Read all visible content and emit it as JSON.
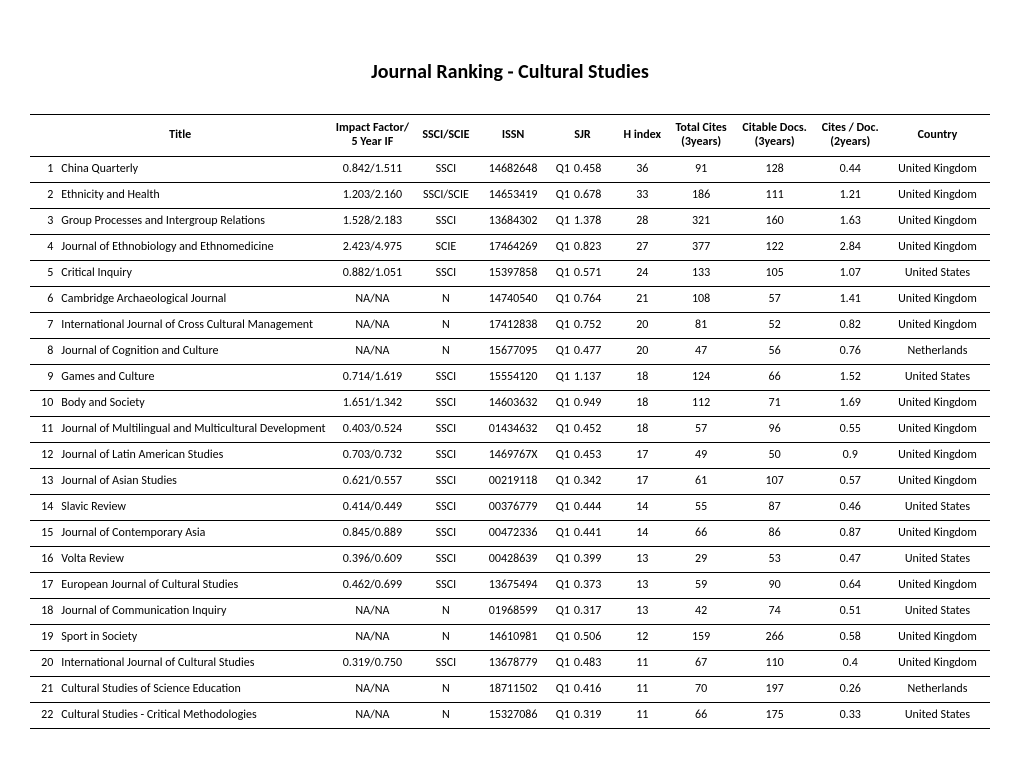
{
  "page_title": "Journal Ranking - Cultural Studies",
  "columns": {
    "title": "Title",
    "impact": "Impact Factor/\n5 Year IF",
    "ssci": "SSCI/SCIE",
    "issn": "ISSN",
    "sjr": "SJR",
    "hindex": "H index",
    "tcites": "Total Cites\n(3years)",
    "cdocs": "Citable Docs.\n(3years)",
    "cpd": "Cites / Doc.\n(2years)",
    "country": "Country"
  },
  "rows": [
    {
      "rank": "1",
      "title": "China Quarterly",
      "impact": "0.842/1.511",
      "ssci": "SSCI",
      "issn": "14682648",
      "q": "Q1",
      "sjr": "0.458",
      "h": "36",
      "tc": "91",
      "cd": "128",
      "cpd": "0.44",
      "country": "United Kingdom"
    },
    {
      "rank": "2",
      "title": "Ethnicity and Health",
      "impact": "1.203/2.160",
      "ssci": "SSCI/SCIE",
      "issn": "14653419",
      "q": "Q1",
      "sjr": "0.678",
      "h": "33",
      "tc": "186",
      "cd": "111",
      "cpd": "1.21",
      "country": "United Kingdom"
    },
    {
      "rank": "3",
      "title": "Group Processes and Intergroup Relations",
      "impact": "1.528/2.183",
      "ssci": "SSCI",
      "issn": "13684302",
      "q": "Q1",
      "sjr": "1.378",
      "h": "28",
      "tc": "321",
      "cd": "160",
      "cpd": "1.63",
      "country": "United Kingdom"
    },
    {
      "rank": "4",
      "title": "Journal of Ethnobiology and Ethnomedicine",
      "impact": "2.423/4.975",
      "ssci": "SCIE",
      "issn": "17464269",
      "q": "Q1",
      "sjr": "0.823",
      "h": "27",
      "tc": "377",
      "cd": "122",
      "cpd": "2.84",
      "country": "United Kingdom"
    },
    {
      "rank": "5",
      "title": "Critical Inquiry",
      "impact": "0.882/1.051",
      "ssci": "SSCI",
      "issn": "15397858",
      "q": "Q1",
      "sjr": "0.571",
      "h": "24",
      "tc": "133",
      "cd": "105",
      "cpd": "1.07",
      "country": "United States"
    },
    {
      "rank": "6",
      "title": "Cambridge Archaeological Journal",
      "impact": "NA/NA",
      "ssci": "N",
      "issn": "14740540",
      "q": "Q1",
      "sjr": "0.764",
      "h": "21",
      "tc": "108",
      "cd": "57",
      "cpd": "1.41",
      "country": "United Kingdom"
    },
    {
      "rank": "7",
      "title": "International Journal of Cross Cultural Management",
      "impact": "NA/NA",
      "ssci": "N",
      "issn": "17412838",
      "q": "Q1",
      "sjr": "0.752",
      "h": "20",
      "tc": "81",
      "cd": "52",
      "cpd": "0.82",
      "country": "United Kingdom"
    },
    {
      "rank": "8",
      "title": "Journal of Cognition and Culture",
      "impact": "NA/NA",
      "ssci": "N",
      "issn": "15677095",
      "q": "Q1",
      "sjr": "0.477",
      "h": "20",
      "tc": "47",
      "cd": "56",
      "cpd": "0.76",
      "country": "Netherlands"
    },
    {
      "rank": "9",
      "title": "Games and Culture",
      "impact": "0.714/1.619",
      "ssci": "SSCI",
      "issn": "15554120",
      "q": "Q1",
      "sjr": "1.137",
      "h": "18",
      "tc": "124",
      "cd": "66",
      "cpd": "1.52",
      "country": "United States"
    },
    {
      "rank": "10",
      "title": "Body and Society",
      "impact": "1.651/1.342",
      "ssci": "SSCI",
      "issn": "14603632",
      "q": "Q1",
      "sjr": "0.949",
      "h": "18",
      "tc": "112",
      "cd": "71",
      "cpd": "1.69",
      "country": "United Kingdom"
    },
    {
      "rank": "11",
      "title": "Journal of Multilingual and Multicultural Development",
      "impact": "0.403/0.524",
      "ssci": "SSCI",
      "issn": "01434632",
      "q": "Q1",
      "sjr": "0.452",
      "h": "18",
      "tc": "57",
      "cd": "96",
      "cpd": "0.55",
      "country": "United Kingdom"
    },
    {
      "rank": "12",
      "title": "Journal of Latin American Studies",
      "impact": "0.703/0.732",
      "ssci": "SSCI",
      "issn": "1469767X",
      "q": "Q1",
      "sjr": "0.453",
      "h": "17",
      "tc": "49",
      "cd": "50",
      "cpd": "0.9",
      "country": "United Kingdom"
    },
    {
      "rank": "13",
      "title": "Journal of Asian Studies",
      "impact": "0.621/0.557",
      "ssci": "SSCI",
      "issn": "00219118",
      "q": "Q1",
      "sjr": "0.342",
      "h": "17",
      "tc": "61",
      "cd": "107",
      "cpd": "0.57",
      "country": "United Kingdom"
    },
    {
      "rank": "14",
      "title": "Slavic Review",
      "impact": "0.414/0.449",
      "ssci": "SSCI",
      "issn": "00376779",
      "q": "Q1",
      "sjr": "0.444",
      "h": "14",
      "tc": "55",
      "cd": "87",
      "cpd": "0.46",
      "country": "United States"
    },
    {
      "rank": "15",
      "title": "Journal of Contemporary Asia",
      "impact": "0.845/0.889",
      "ssci": "SSCI",
      "issn": "00472336",
      "q": "Q1",
      "sjr": "0.441",
      "h": "14",
      "tc": "66",
      "cd": "86",
      "cpd": "0.87",
      "country": "United Kingdom"
    },
    {
      "rank": "16",
      "title": "Volta Review",
      "impact": "0.396/0.609",
      "ssci": "SSCI",
      "issn": "00428639",
      "q": "Q1",
      "sjr": "0.399",
      "h": "13",
      "tc": "29",
      "cd": "53",
      "cpd": "0.47",
      "country": "United States"
    },
    {
      "rank": "17",
      "title": "European Journal of Cultural Studies",
      "impact": "0.462/0.699",
      "ssci": "SSCI",
      "issn": "13675494",
      "q": "Q1",
      "sjr": "0.373",
      "h": "13",
      "tc": "59",
      "cd": "90",
      "cpd": "0.64",
      "country": "United Kingdom"
    },
    {
      "rank": "18",
      "title": "Journal of Communication Inquiry",
      "impact": "NA/NA",
      "ssci": "N",
      "issn": "01968599",
      "q": "Q1",
      "sjr": "0.317",
      "h": "13",
      "tc": "42",
      "cd": "74",
      "cpd": "0.51",
      "country": "United States"
    },
    {
      "rank": "19",
      "title": "Sport in Society",
      "impact": "NA/NA",
      "ssci": "N",
      "issn": "14610981",
      "q": "Q1",
      "sjr": "0.506",
      "h": "12",
      "tc": "159",
      "cd": "266",
      "cpd": "0.58",
      "country": "United Kingdom"
    },
    {
      "rank": "20",
      "title": "International Journal of Cultural Studies",
      "impact": "0.319/0.750",
      "ssci": "SSCI",
      "issn": "13678779",
      "q": "Q1",
      "sjr": "0.483",
      "h": "11",
      "tc": "67",
      "cd": "110",
      "cpd": "0.4",
      "country": "United Kingdom"
    },
    {
      "rank": "21",
      "title": "Cultural Studies of Science Education",
      "impact": "NA/NA",
      "ssci": "N",
      "issn": "18711502",
      "q": "Q1",
      "sjr": "0.416",
      "h": "11",
      "tc": "70",
      "cd": "197",
      "cpd": "0.26",
      "country": "Netherlands"
    },
    {
      "rank": "22",
      "title": "Cultural Studies - Critical Methodologies",
      "impact": "NA/NA",
      "ssci": "N",
      "issn": "15327086",
      "q": "Q1",
      "sjr": "0.319",
      "h": "11",
      "tc": "66",
      "cd": "175",
      "cpd": "0.33",
      "country": "United States"
    }
  ]
}
